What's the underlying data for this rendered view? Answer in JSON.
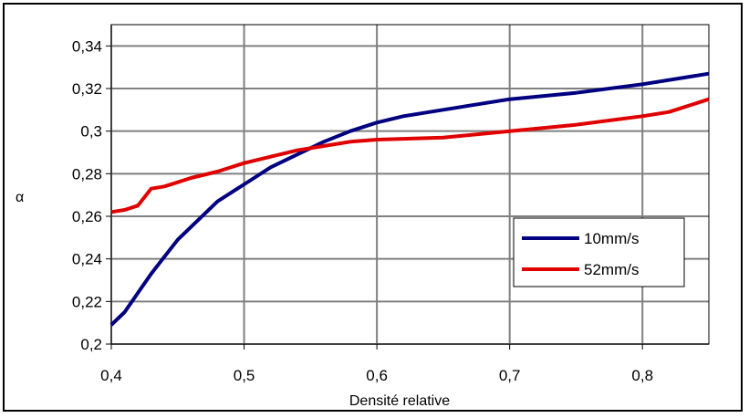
{
  "chart_data": {
    "type": "line",
    "xlabel": "Densité relative",
    "ylabel": "α",
    "xlim": [
      0.4,
      0.85
    ],
    "ylim": [
      0.2,
      0.35
    ],
    "x_ticks": [
      0.4,
      0.5,
      0.6,
      0.7,
      0.8
    ],
    "x_tick_labels": [
      "0,4",
      "0,5",
      "0,6",
      "0,7",
      "0,8"
    ],
    "y_ticks": [
      0.2,
      0.22,
      0.24,
      0.26,
      0.28,
      0.3,
      0.32,
      0.34
    ],
    "y_tick_labels": [
      "0,2",
      "0,22",
      "0,24",
      "0,26",
      "0,28",
      "0,3",
      "0,32",
      "0,34"
    ],
    "grid": true,
    "legend_position": "center-right",
    "series": [
      {
        "name": "10mm/s",
        "color": "#000080",
        "x": [
          0.4,
          0.41,
          0.42,
          0.43,
          0.44,
          0.45,
          0.46,
          0.47,
          0.48,
          0.49,
          0.5,
          0.52,
          0.54,
          0.56,
          0.58,
          0.6,
          0.62,
          0.65,
          0.7,
          0.75,
          0.8,
          0.85
        ],
        "y": [
          0.209,
          0.215,
          0.224,
          0.233,
          0.241,
          0.249,
          0.255,
          0.261,
          0.267,
          0.271,
          0.275,
          0.283,
          0.289,
          0.295,
          0.3,
          0.304,
          0.307,
          0.31,
          0.315,
          0.318,
          0.322,
          0.327
        ]
      },
      {
        "name": "52mm/s",
        "color": "#e00000",
        "x": [
          0.4,
          0.41,
          0.42,
          0.43,
          0.44,
          0.45,
          0.46,
          0.48,
          0.5,
          0.52,
          0.54,
          0.56,
          0.58,
          0.6,
          0.65,
          0.7,
          0.75,
          0.8,
          0.82,
          0.85
        ],
        "y": [
          0.262,
          0.263,
          0.265,
          0.273,
          0.274,
          0.276,
          0.278,
          0.281,
          0.285,
          0.288,
          0.291,
          0.293,
          0.295,
          0.296,
          0.297,
          0.3,
          0.303,
          0.307,
          0.309,
          0.315
        ]
      }
    ]
  }
}
